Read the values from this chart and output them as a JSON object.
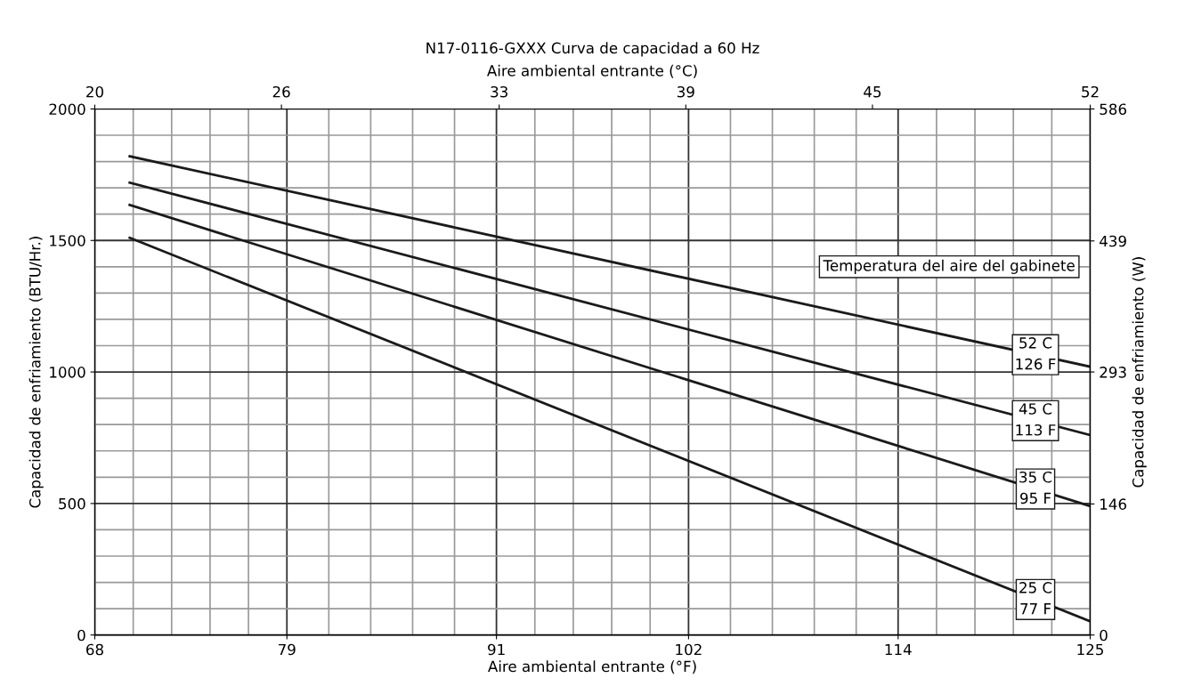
{
  "chart_data": {
    "type": "line",
    "title": "N17-0116-GXXX Curva de capacidad a 60 Hz",
    "xlabel": "Aire ambiental entrante (°F)",
    "x2label": "Aire ambiental entrante (°C)",
    "ylabel": "Capacidad de enfriamiento (BTU/Hr.)",
    "y2label": "Capacidad de enfriamiento (W)",
    "legend_title": "Temperatura del aire del gabinete",
    "xlim": [
      68,
      125
    ],
    "xticks": [
      68,
      79,
      91,
      102,
      114,
      125
    ],
    "x2lim": [
      20,
      52
    ],
    "x2ticks": [
      20,
      26,
      33,
      39,
      45,
      52
    ],
    "ylim": [
      0,
      2000
    ],
    "yticks": [
      0,
      500,
      1000,
      1500,
      2000
    ],
    "y2lim": [
      0,
      586
    ],
    "y2ticks": [
      0,
      146,
      293,
      439,
      586
    ],
    "grid": true,
    "marker": "none",
    "line_style": "solid",
    "x": [
      70,
      125
    ],
    "series": [
      {
        "name": "52 C\n126 F",
        "color": "#1a1a1a",
        "values": [
          1820,
          1020
        ]
      },
      {
        "name": "45 C\n113 F",
        "color": "#1a1a1a",
        "values": [
          1720,
          760
        ]
      },
      {
        "name": "35 C\n95 F",
        "color": "#1a1a1a",
        "values": [
          1635,
          490
        ]
      },
      {
        "name": "25 C\n77 F",
        "color": "#1a1a1a",
        "values": [
          1510,
          52
        ]
      }
    ]
  }
}
